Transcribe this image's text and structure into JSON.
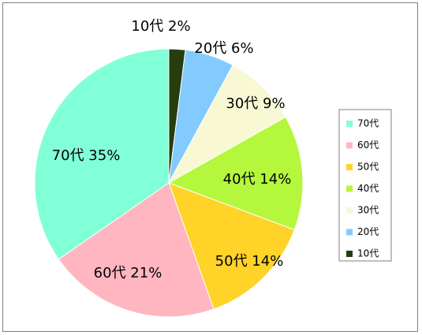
{
  "chart_data": {
    "type": "pie",
    "categories": [
      "10代",
      "20代",
      "30代",
      "40代",
      "50代",
      "60代",
      "70代"
    ],
    "values": [
      2,
      6,
      9,
      14,
      14,
      21,
      35
    ],
    "slice_labels": [
      "10代 2%",
      "20代 6%",
      "30代 9%",
      "40代 14%",
      "50代 14%",
      "60代 21%",
      "70代 35%"
    ],
    "colors": [
      "#263d0f",
      "#83caff",
      "#f8f8d4",
      "#b4f73c",
      "#ffd327",
      "#ffb6c0",
      "#81ffd6"
    ],
    "start_angle_deg": 0,
    "direction": "clockwise",
    "legend": {
      "placement": "right",
      "order": [
        "70代",
        "60代",
        "50代",
        "40代",
        "30代",
        "20代",
        "10代"
      ]
    }
  }
}
